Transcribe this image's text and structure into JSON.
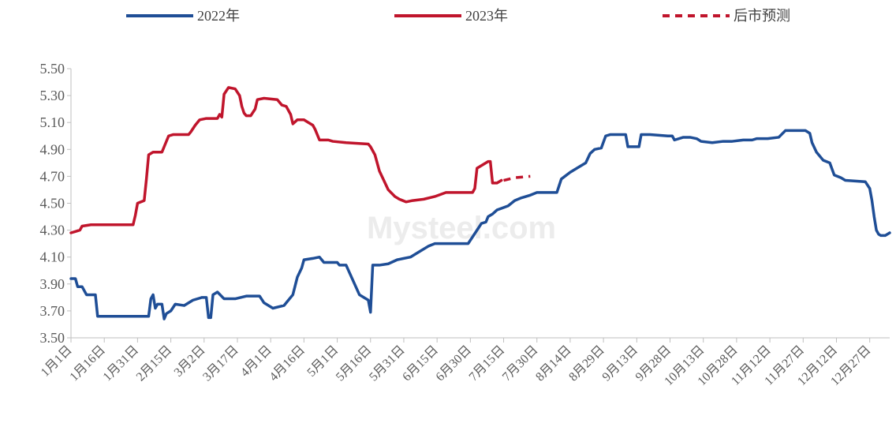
{
  "chart_data": {
    "type": "line",
    "title": "",
    "xlabel": "",
    "ylabel": "",
    "ylim": [
      3.5,
      5.5
    ],
    "yticks": [
      "3.50",
      "3.70",
      "3.90",
      "4.10",
      "4.30",
      "4.50",
      "4.70",
      "4.90",
      "5.10",
      "5.30",
      "5.50"
    ],
    "xtick_labels": [
      "1月1日",
      "1月16日",
      "1月31日",
      "2月15日",
      "3月2日",
      "3月17日",
      "4月1日",
      "4月16日",
      "5月1日",
      "5月16日",
      "5月31日",
      "6月15日",
      "6月30日",
      "7月15日",
      "7月30日",
      "8月14日",
      "8月29日",
      "9月13日",
      "9月28日",
      "10月13日",
      "10月28日",
      "11月12日",
      "11月27日",
      "12月12日",
      "12月27日"
    ],
    "x_unit": "day of year (1 = 1月1日)",
    "grid": false,
    "legend_position": "top",
    "watermark": "Mysteel.com",
    "series": [
      {
        "name": "2022年",
        "color": "#1f4e96",
        "style": "solid",
        "points": [
          [
            1,
            3.94
          ],
          [
            3,
            3.94
          ],
          [
            4,
            3.88
          ],
          [
            6,
            3.88
          ],
          [
            7,
            3.85
          ],
          [
            8,
            3.82
          ],
          [
            12,
            3.82
          ],
          [
            13,
            3.66
          ],
          [
            26,
            3.66
          ],
          [
            36,
            3.66
          ],
          [
            37,
            3.79
          ],
          [
            38,
            3.82
          ],
          [
            39,
            3.72
          ],
          [
            40,
            3.75
          ],
          [
            42,
            3.75
          ],
          [
            43,
            3.64
          ],
          [
            44,
            3.68
          ],
          [
            46,
            3.7
          ],
          [
            48,
            3.75
          ],
          [
            52,
            3.74
          ],
          [
            56,
            3.78
          ],
          [
            60,
            3.8
          ],
          [
            62,
            3.8
          ],
          [
            63,
            3.65
          ],
          [
            64,
            3.65
          ],
          [
            65,
            3.82
          ],
          [
            67,
            3.84
          ],
          [
            70,
            3.79
          ],
          [
            75,
            3.79
          ],
          [
            80,
            3.81
          ],
          [
            86,
            3.81
          ],
          [
            88,
            3.76
          ],
          [
            92,
            3.72
          ],
          [
            97,
            3.74
          ],
          [
            101,
            3.82
          ],
          [
            103,
            3.95
          ],
          [
            105,
            4.02
          ],
          [
            106,
            4.08
          ],
          [
            110,
            4.09
          ],
          [
            113,
            4.1
          ],
          [
            115,
            4.06
          ],
          [
            121,
            4.06
          ],
          [
            122,
            4.04
          ],
          [
            125,
            4.04
          ],
          [
            128,
            3.93
          ],
          [
            131,
            3.82
          ],
          [
            133,
            3.8
          ],
          [
            135,
            3.78
          ],
          [
            136,
            3.69
          ],
          [
            137,
            4.04
          ],
          [
            140,
            4.04
          ],
          [
            144,
            4.05
          ],
          [
            148,
            4.08
          ],
          [
            154,
            4.1
          ],
          [
            158,
            4.14
          ],
          [
            162,
            4.18
          ],
          [
            165,
            4.2
          ],
          [
            170,
            4.2
          ],
          [
            180,
            4.2
          ],
          [
            184,
            4.3
          ],
          [
            186,
            4.35
          ],
          [
            188,
            4.36
          ],
          [
            189,
            4.4
          ],
          [
            191,
            4.42
          ],
          [
            193,
            4.45
          ],
          [
            198,
            4.48
          ],
          [
            201,
            4.52
          ],
          [
            204,
            4.54
          ],
          [
            208,
            4.56
          ],
          [
            211,
            4.58
          ],
          [
            220,
            4.58
          ],
          [
            222,
            4.68
          ],
          [
            226,
            4.73
          ],
          [
            229,
            4.76
          ],
          [
            233,
            4.8
          ],
          [
            235,
            4.87
          ],
          [
            237,
            4.9
          ],
          [
            240,
            4.91
          ],
          [
            242,
            5.0
          ],
          [
            244,
            5.01
          ],
          [
            251,
            5.01
          ],
          [
            252,
            4.92
          ],
          [
            257,
            4.92
          ],
          [
            258,
            5.01
          ],
          [
            262,
            5.01
          ],
          [
            270,
            5.0
          ],
          [
            272,
            5.0
          ],
          [
            273,
            4.97
          ],
          [
            277,
            4.99
          ],
          [
            280,
            4.99
          ],
          [
            283,
            4.98
          ],
          [
            285,
            4.96
          ],
          [
            290,
            4.95
          ],
          [
            295,
            4.96
          ],
          [
            299,
            4.96
          ],
          [
            304,
            4.97
          ],
          [
            308,
            4.97
          ],
          [
            310,
            4.98
          ],
          [
            315,
            4.98
          ],
          [
            320,
            4.99
          ],
          [
            323,
            5.04
          ],
          [
            332,
            5.04
          ],
          [
            334,
            5.02
          ],
          [
            335,
            4.95
          ],
          [
            337,
            4.88
          ],
          [
            340,
            4.82
          ],
          [
            343,
            4.8
          ],
          [
            345,
            4.71
          ],
          [
            348,
            4.69
          ],
          [
            350,
            4.67
          ],
          [
            359,
            4.66
          ],
          [
            361,
            4.61
          ],
          [
            362,
            4.52
          ],
          [
            363,
            4.4
          ],
          [
            364,
            4.3
          ],
          [
            365,
            4.27
          ],
          [
            366,
            4.26
          ],
          [
            368,
            4.26
          ],
          [
            370,
            4.28
          ]
        ]
      },
      {
        "name": "2023年",
        "color": "#c0152c",
        "style": "solid",
        "points": [
          [
            1,
            4.28
          ],
          [
            3,
            4.29
          ],
          [
            5,
            4.3
          ],
          [
            6,
            4.33
          ],
          [
            10,
            4.34
          ],
          [
            14,
            4.34
          ],
          [
            20,
            4.34
          ],
          [
            26,
            4.34
          ],
          [
            29,
            4.34
          ],
          [
            30,
            4.41
          ],
          [
            31,
            4.5
          ],
          [
            34,
            4.52
          ],
          [
            35,
            4.68
          ],
          [
            36,
            4.86
          ],
          [
            38,
            4.88
          ],
          [
            42,
            4.88
          ],
          [
            43,
            4.92
          ],
          [
            45,
            5.0
          ],
          [
            47,
            5.01
          ],
          [
            54,
            5.01
          ],
          [
            55,
            5.03
          ],
          [
            57,
            5.08
          ],
          [
            59,
            5.12
          ],
          [
            62,
            5.13
          ],
          [
            67,
            5.13
          ],
          [
            68,
            5.16
          ],
          [
            69,
            5.14
          ],
          [
            70,
            5.31
          ],
          [
            72,
            5.36
          ],
          [
            75,
            5.35
          ],
          [
            77,
            5.3
          ],
          [
            78,
            5.22
          ],
          [
            79,
            5.17
          ],
          [
            80,
            5.15
          ],
          [
            82,
            5.15
          ],
          [
            84,
            5.2
          ],
          [
            85,
            5.27
          ],
          [
            88,
            5.28
          ],
          [
            94,
            5.27
          ],
          [
            96,
            5.23
          ],
          [
            98,
            5.22
          ],
          [
            100,
            5.16
          ],
          [
            101,
            5.09
          ],
          [
            103,
            5.12
          ],
          [
            106,
            5.12
          ],
          [
            108,
            5.1
          ],
          [
            110,
            5.08
          ],
          [
            111,
            5.05
          ],
          [
            113,
            4.97
          ],
          [
            117,
            4.97
          ],
          [
            119,
            4.96
          ],
          [
            125,
            4.95
          ],
          [
            135,
            4.94
          ],
          [
            136,
            4.92
          ],
          [
            138,
            4.86
          ],
          [
            140,
            4.74
          ],
          [
            142,
            4.67
          ],
          [
            144,
            4.6
          ],
          [
            147,
            4.55
          ],
          [
            149,
            4.53
          ],
          [
            152,
            4.51
          ],
          [
            155,
            4.52
          ],
          [
            160,
            4.53
          ],
          [
            165,
            4.55
          ],
          [
            170,
            4.58
          ],
          [
            175,
            4.58
          ],
          [
            180,
            4.58
          ],
          [
            182,
            4.58
          ],
          [
            183,
            4.61
          ],
          [
            184,
            4.76
          ],
          [
            186,
            4.78
          ],
          [
            189,
            4.81
          ],
          [
            190,
            4.81
          ],
          [
            191,
            4.65
          ],
          [
            193,
            4.65
          ],
          [
            195,
            4.67
          ]
        ]
      },
      {
        "name": "后市预测",
        "color": "#c0152c",
        "style": "dashed",
        "points": [
          [
            196,
            4.67
          ],
          [
            201,
            4.69
          ],
          [
            208,
            4.7
          ]
        ]
      }
    ]
  }
}
